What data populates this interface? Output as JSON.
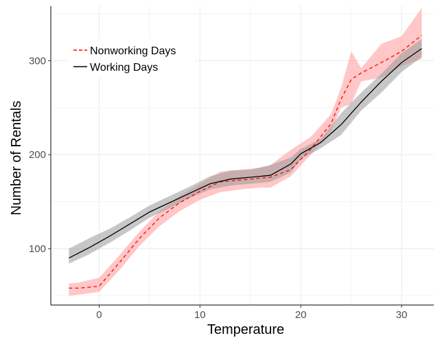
{
  "chart_data": {
    "type": "line",
    "title": "",
    "xlabel": "Temperature",
    "ylabel": "Number of Rentals",
    "xlim": [
      -4.8,
      33.2
    ],
    "ylim": [
      40,
      358
    ],
    "x_ticks": [
      0,
      10,
      20,
      30
    ],
    "y_ticks": [
      100,
      200,
      300
    ],
    "x_tick_labels": [
      "0",
      "10",
      "20",
      "30"
    ],
    "y_tick_labels": [
      "100",
      "200",
      "300"
    ],
    "grid": true,
    "legend_position": "top-left",
    "series": [
      {
        "name": "Nonworking Days",
        "color": "#ff0000",
        "line_style": "dashed",
        "band_color": "#ff9999",
        "x": [
          -3,
          -2,
          0,
          2,
          4,
          6,
          8,
          10,
          12,
          14,
          16,
          17,
          19,
          21,
          23,
          24,
          25,
          26,
          28,
          30,
          32
        ],
        "y": [
          58,
          58,
          60,
          85,
          111,
          133,
          149,
          161,
          171,
          173,
          175,
          176,
          184,
          206,
          233,
          259,
          280,
          287,
          298,
          310,
          327
        ],
        "lower": [
          50,
          51,
          54,
          77,
          103,
          124,
          140,
          152,
          160,
          163,
          165,
          165,
          177,
          200,
          225,
          250,
          254,
          278,
          282,
          294,
          302
        ],
        "upper": [
          63,
          64,
          69,
          93,
          118,
          140,
          156,
          169,
          182,
          184,
          186,
          189,
          205,
          219,
          243,
          271,
          310,
          292,
          318,
          326,
          356
        ]
      },
      {
        "name": "Working Days",
        "color": "#000000",
        "line_style": "solid",
        "band_color": "#999999",
        "x": [
          -3,
          -1,
          1,
          3,
          5,
          7,
          9,
          11,
          13,
          15,
          17,
          19,
          20,
          22,
          24,
          26,
          28,
          30,
          32
        ],
        "y": [
          90,
          101,
          113,
          126,
          139,
          149,
          159,
          169,
          174,
          176,
          178,
          190,
          201,
          213,
          232,
          256,
          278,
          298,
          313
        ],
        "lower": [
          84,
          94,
          106,
          119,
          133,
          143,
          154,
          163,
          167,
          169,
          171,
          181,
          195,
          207,
          221,
          247,
          266,
          288,
          304
        ],
        "upper": [
          100,
          111,
          121,
          133,
          146,
          156,
          166,
          177,
          183,
          184,
          189,
          197,
          206,
          217,
          244,
          266,
          286,
          308,
          323
        ]
      }
    ]
  }
}
